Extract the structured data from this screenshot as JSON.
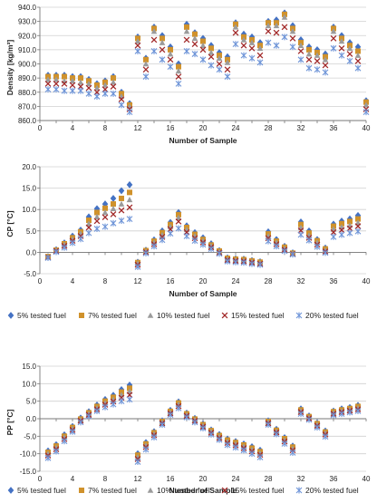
{
  "legend": [
    {
      "name": "5% tested fuel",
      "color": "#4472C4",
      "marker": "diamond"
    },
    {
      "name": "7% tested fuel",
      "color": "#D0922C",
      "marker": "square"
    },
    {
      "name": "10% tested fuel",
      "color": "#9B9B9B",
      "marker": "triangle"
    },
    {
      "name": "15% tested fuel",
      "color": "#A12828",
      "marker": "x"
    },
    {
      "name": "20% tested fuel",
      "color": "#6F95D8",
      "marker": "star"
    }
  ],
  "chart_data": [
    {
      "type": "scatter",
      "xlabel": "Number of Sample",
      "ylabel": "Density [kg/m³]",
      "x": [
        1,
        2,
        3,
        4,
        5,
        6,
        7,
        8,
        9,
        10,
        11,
        12,
        13,
        14,
        15,
        16,
        17,
        18,
        19,
        20,
        21,
        22,
        23,
        24,
        25,
        26,
        27,
        28,
        29,
        30,
        31,
        32,
        33,
        34,
        35,
        36,
        37,
        38,
        39,
        40
      ],
      "xlim": [
        0,
        40
      ],
      "ylim": [
        860,
        940
      ],
      "xticks": [
        "0",
        "2",
        "4",
        "6",
        "8",
        "10",
        "12",
        "14",
        "16",
        "18",
        "20",
        "22",
        "24",
        "26",
        "28",
        "30",
        "32",
        "34",
        "36",
        "38",
        "40"
      ],
      "yticks": [
        "860.0",
        "870.0",
        "880.0",
        "890.0",
        "900.0",
        "910.0",
        "920.0",
        "930.0",
        "940.0"
      ],
      "series": [
        {
          "name": "5% tested fuel",
          "values": [
            892,
            892,
            892,
            891,
            891,
            889,
            886,
            888,
            891,
            880,
            872,
            919,
            904,
            926,
            920,
            912,
            900,
            928,
            922,
            918,
            913,
            908,
            905,
            929,
            921,
            919,
            915,
            930,
            931,
            936,
            927,
            917,
            912,
            910,
            907,
            926,
            920,
            915,
            912,
            874
          ]
        },
        {
          "name": "7% tested fuel",
          "values": [
            891,
            891,
            891,
            890,
            890,
            888,
            885,
            887,
            890,
            879,
            871,
            918,
            903,
            925,
            918,
            910,
            898,
            926,
            921,
            916,
            911,
            906,
            903,
            928,
            919,
            917,
            913,
            929,
            929,
            935,
            925,
            915,
            910,
            908,
            905,
            925,
            918,
            913,
            909,
            873
          ]
        },
        {
          "name": "10% tested fuel",
          "values": [
            889,
            889,
            888,
            888,
            887,
            886,
            883,
            885,
            887,
            877,
            870,
            916,
            900,
            923,
            915,
            907,
            895,
            923,
            918,
            913,
            908,
            904,
            901,
            926,
            917,
            915,
            911,
            927,
            927,
            933,
            923,
            913,
            907,
            906,
            903,
            923,
            916,
            911,
            906,
            871
          ]
        },
        {
          "name": "15% tested fuel",
          "values": [
            886,
            886,
            886,
            885,
            884,
            883,
            880,
            882,
            884,
            875,
            868,
            913,
            896,
            917,
            910,
            903,
            891,
            917,
            914,
            910,
            905,
            900,
            896,
            922,
            913,
            911,
            906,
            923,
            922,
            926,
            918,
            909,
            903,
            902,
            899,
            918,
            911,
            907,
            902,
            868
          ]
        },
        {
          "name": "20% tested fuel",
          "values": [
            882,
            882,
            881,
            881,
            881,
            879,
            877,
            879,
            879,
            871,
            866,
            909,
            891,
            909,
            903,
            898,
            886,
            909,
            907,
            903,
            899,
            896,
            891,
            914,
            906,
            904,
            901,
            915,
            913,
            919,
            912,
            903,
            897,
            896,
            894,
            911,
            906,
            902,
            897,
            866
          ]
        }
      ]
    },
    {
      "type": "scatter",
      "xlabel": "Number of Sample",
      "ylabel": "CP [°C]",
      "x": [
        1,
        2,
        3,
        4,
        5,
        6,
        7,
        8,
        9,
        10,
        11,
        12,
        13,
        14,
        15,
        16,
        17,
        18,
        19,
        20,
        21,
        22,
        23,
        24,
        25,
        26,
        27,
        28,
        29,
        30,
        31,
        32,
        33,
        34,
        35,
        36,
        37,
        38,
        39
      ],
      "xlim": [
        0,
        40
      ],
      "ylim": [
        -5,
        20
      ],
      "xticks": [
        "0",
        "2",
        "4",
        "6",
        "8",
        "10",
        "12",
        "14",
        "16",
        "18",
        "20",
        "22",
        "24",
        "26",
        "28",
        "30",
        "32",
        "34",
        "36",
        "38",
        "40"
      ],
      "yticks": [
        "-5.0",
        "0.0",
        "5.0",
        "10.0",
        "15.0",
        "20.0"
      ],
      "series": [
        {
          "name": "5% tested fuel",
          "values": [
            -1.0,
            0.6,
            2.2,
            3.8,
            5.2,
            8.3,
            10.2,
            11.3,
            12.6,
            14.4,
            15.8,
            -2.3,
            0.5,
            2.9,
            5.0,
            7.0,
            9.3,
            6.2,
            4.6,
            3.4,
            2.0,
            0.4,
            -1.3,
            -1.5,
            -1.6,
            -1.9,
            -2.2,
            4.8,
            3.0,
            1.4,
            -0.1,
            7.1,
            5.0,
            3.0,
            1.0,
            6.6,
            7.3,
            7.8,
            8.6
          ]
        },
        {
          "name": "7% tested fuel",
          "values": [
            -1.0,
            0.5,
            2.0,
            3.4,
            4.8,
            7.5,
            9.3,
            10.3,
            11.3,
            12.6,
            14.0,
            -2.4,
            0.4,
            2.6,
            4.6,
            6.5,
            8.8,
            5.8,
            4.2,
            3.0,
            1.7,
            0.3,
            -1.4,
            -1.6,
            -1.7,
            -2.0,
            -2.3,
            4.3,
            2.6,
            1.2,
            -0.2,
            6.5,
            4.5,
            2.7,
            0.8,
            6.1,
            6.7,
            7.2,
            7.8
          ]
        },
        {
          "name": "10% tested fuel",
          "values": [
            -1.1,
            0.4,
            1.8,
            3.1,
            4.4,
            6.7,
            8.3,
            9.3,
            10.2,
            11.3,
            12.3,
            -2.6,
            0.2,
            2.3,
            4.1,
            6.0,
            8.1,
            5.3,
            3.8,
            2.7,
            1.5,
            0.1,
            -1.6,
            -1.8,
            -1.9,
            -2.2,
            -2.5,
            3.8,
            2.3,
            0.9,
            -0.3,
            5.8,
            4.0,
            2.3,
            0.5,
            5.4,
            5.9,
            6.3,
            6.9
          ]
        },
        {
          "name": "15% tested fuel",
          "values": [
            -1.2,
            0.3,
            1.5,
            2.7,
            3.8,
            5.8,
            7.3,
            8.2,
            8.9,
            9.8,
            10.5,
            -2.9,
            0.0,
            1.9,
            3.6,
            5.4,
            7.2,
            4.7,
            3.3,
            2.3,
            1.2,
            -0.1,
            -1.8,
            -2.0,
            -2.1,
            -2.4,
            -2.7,
            3.3,
            1.9,
            0.6,
            -0.4,
            5.1,
            3.4,
            1.8,
            0.2,
            4.7,
            5.2,
            5.6,
            6.1
          ]
        },
        {
          "name": "20% tested fuel",
          "values": [
            -1.3,
            0.1,
            1.1,
            2.2,
            3.1,
            4.5,
            5.5,
            6.0,
            6.8,
            7.4,
            7.8,
            -3.4,
            -0.2,
            1.4,
            2.9,
            4.4,
            5.6,
            3.8,
            2.7,
            1.8,
            0.8,
            -0.3,
            -2.1,
            -2.3,
            -2.4,
            -2.7,
            -2.9,
            2.6,
            1.4,
            0.3,
            -0.5,
            4.1,
            2.8,
            1.3,
            -0.1,
            3.6,
            4.1,
            4.5,
            4.9
          ]
        }
      ]
    },
    {
      "type": "scatter",
      "xlabel": "Number of Sample",
      "ylabel": "PP [°C]",
      "x": [
        1,
        2,
        3,
        4,
        5,
        6,
        7,
        8,
        9,
        10,
        11,
        12,
        13,
        14,
        15,
        16,
        17,
        18,
        19,
        20,
        21,
        22,
        23,
        24,
        25,
        26,
        27,
        28,
        29,
        30,
        31,
        32,
        33,
        34,
        35,
        36,
        37,
        38,
        39
      ],
      "xlim": [
        0,
        40
      ],
      "ylim": [
        -15,
        15
      ],
      "xticks": [
        "0",
        "2",
        "4",
        "6",
        "8",
        "10",
        "12",
        "14",
        "16",
        "18",
        "20",
        "22",
        "24",
        "26",
        "28",
        "30",
        "32",
        "34",
        "36",
        "38",
        "40"
      ],
      "yticks": [
        "-15.0",
        "-10.0",
        "-5.0",
        "0.0",
        "5.0",
        "10.0",
        "15.0"
      ],
      "series": [
        {
          "name": "5% tested fuel",
          "values": [
            -9.2,
            -7.4,
            -4.6,
            -2.2,
            0.2,
            2.0,
            3.9,
            5.5,
            6.7,
            8.3,
            9.6,
            -10.0,
            -6.8,
            -3.7,
            -0.6,
            2.4,
            4.8,
            1.6,
            0.1,
            -1.5,
            -3.2,
            -4.5,
            -5.8,
            -6.5,
            -7.2,
            -8.0,
            -9.0,
            -0.6,
            -3.0,
            -5.4,
            -7.8,
            2.8,
            0.8,
            -1.2,
            -3.5,
            2.2,
            2.8,
            3.2,
            3.8
          ]
        },
        {
          "name": "7% tested fuel",
          "values": [
            -9.6,
            -7.8,
            -5.0,
            -2.5,
            -0.1,
            1.7,
            3.5,
            5.0,
            6.1,
            7.6,
            8.7,
            -10.4,
            -7.2,
            -4.0,
            -0.8,
            2.1,
            4.5,
            1.4,
            -0.1,
            -1.7,
            -3.4,
            -4.8,
            -6.1,
            -6.8,
            -7.5,
            -8.4,
            -9.4,
            -0.8,
            -3.3,
            -5.7,
            -8.1,
            2.5,
            0.6,
            -1.4,
            -3.8,
            2.0,
            2.5,
            2.9,
            3.5
          ]
        },
        {
          "name": "10% tested fuel",
          "values": [
            -10.0,
            -8.2,
            -5.3,
            -2.8,
            -0.3,
            1.4,
            3.1,
            4.5,
            5.5,
            6.8,
            7.8,
            -10.9,
            -7.6,
            -4.3,
            -1.0,
            1.8,
            4.1,
            1.1,
            -0.3,
            -2.0,
            -3.7,
            -5.1,
            -6.5,
            -7.2,
            -7.9,
            -8.8,
            -9.8,
            -1.0,
            -3.6,
            -6.1,
            -8.5,
            2.2,
            0.3,
            -1.7,
            -4.1,
            1.7,
            2.2,
            2.6,
            3.1
          ]
        },
        {
          "name": "15% tested fuel",
          "values": [
            -10.5,
            -8.7,
            -5.8,
            -3.2,
            -0.6,
            1.1,
            2.7,
            4.0,
            4.9,
            6.0,
            6.8,
            -11.5,
            -8.1,
            -4.7,
            -1.3,
            1.5,
            3.6,
            0.8,
            -0.6,
            -2.3,
            -4.0,
            -5.5,
            -6.9,
            -7.6,
            -8.4,
            -9.3,
            -10.3,
            -1.3,
            -3.9,
            -6.5,
            -9.0,
            1.9,
            0.1,
            -2.0,
            -4.5,
            1.4,
            1.9,
            2.3,
            2.7
          ]
        },
        {
          "name": "20% tested fuel",
          "values": [
            -11.2,
            -9.3,
            -6.4,
            -3.7,
            -1.0,
            0.7,
            2.2,
            3.3,
            4.1,
            5.0,
            5.5,
            -12.3,
            -8.8,
            -5.3,
            -1.7,
            1.1,
            3.0,
            0.4,
            -1.0,
            -2.7,
            -4.5,
            -6.0,
            -7.5,
            -8.2,
            -9.0,
            -10.0,
            -11.0,
            -1.7,
            -4.4,
            -7.1,
            -9.7,
            1.4,
            -0.3,
            -2.5,
            -5.1,
            1.0,
            1.4,
            1.8,
            2.2
          ]
        }
      ]
    }
  ]
}
